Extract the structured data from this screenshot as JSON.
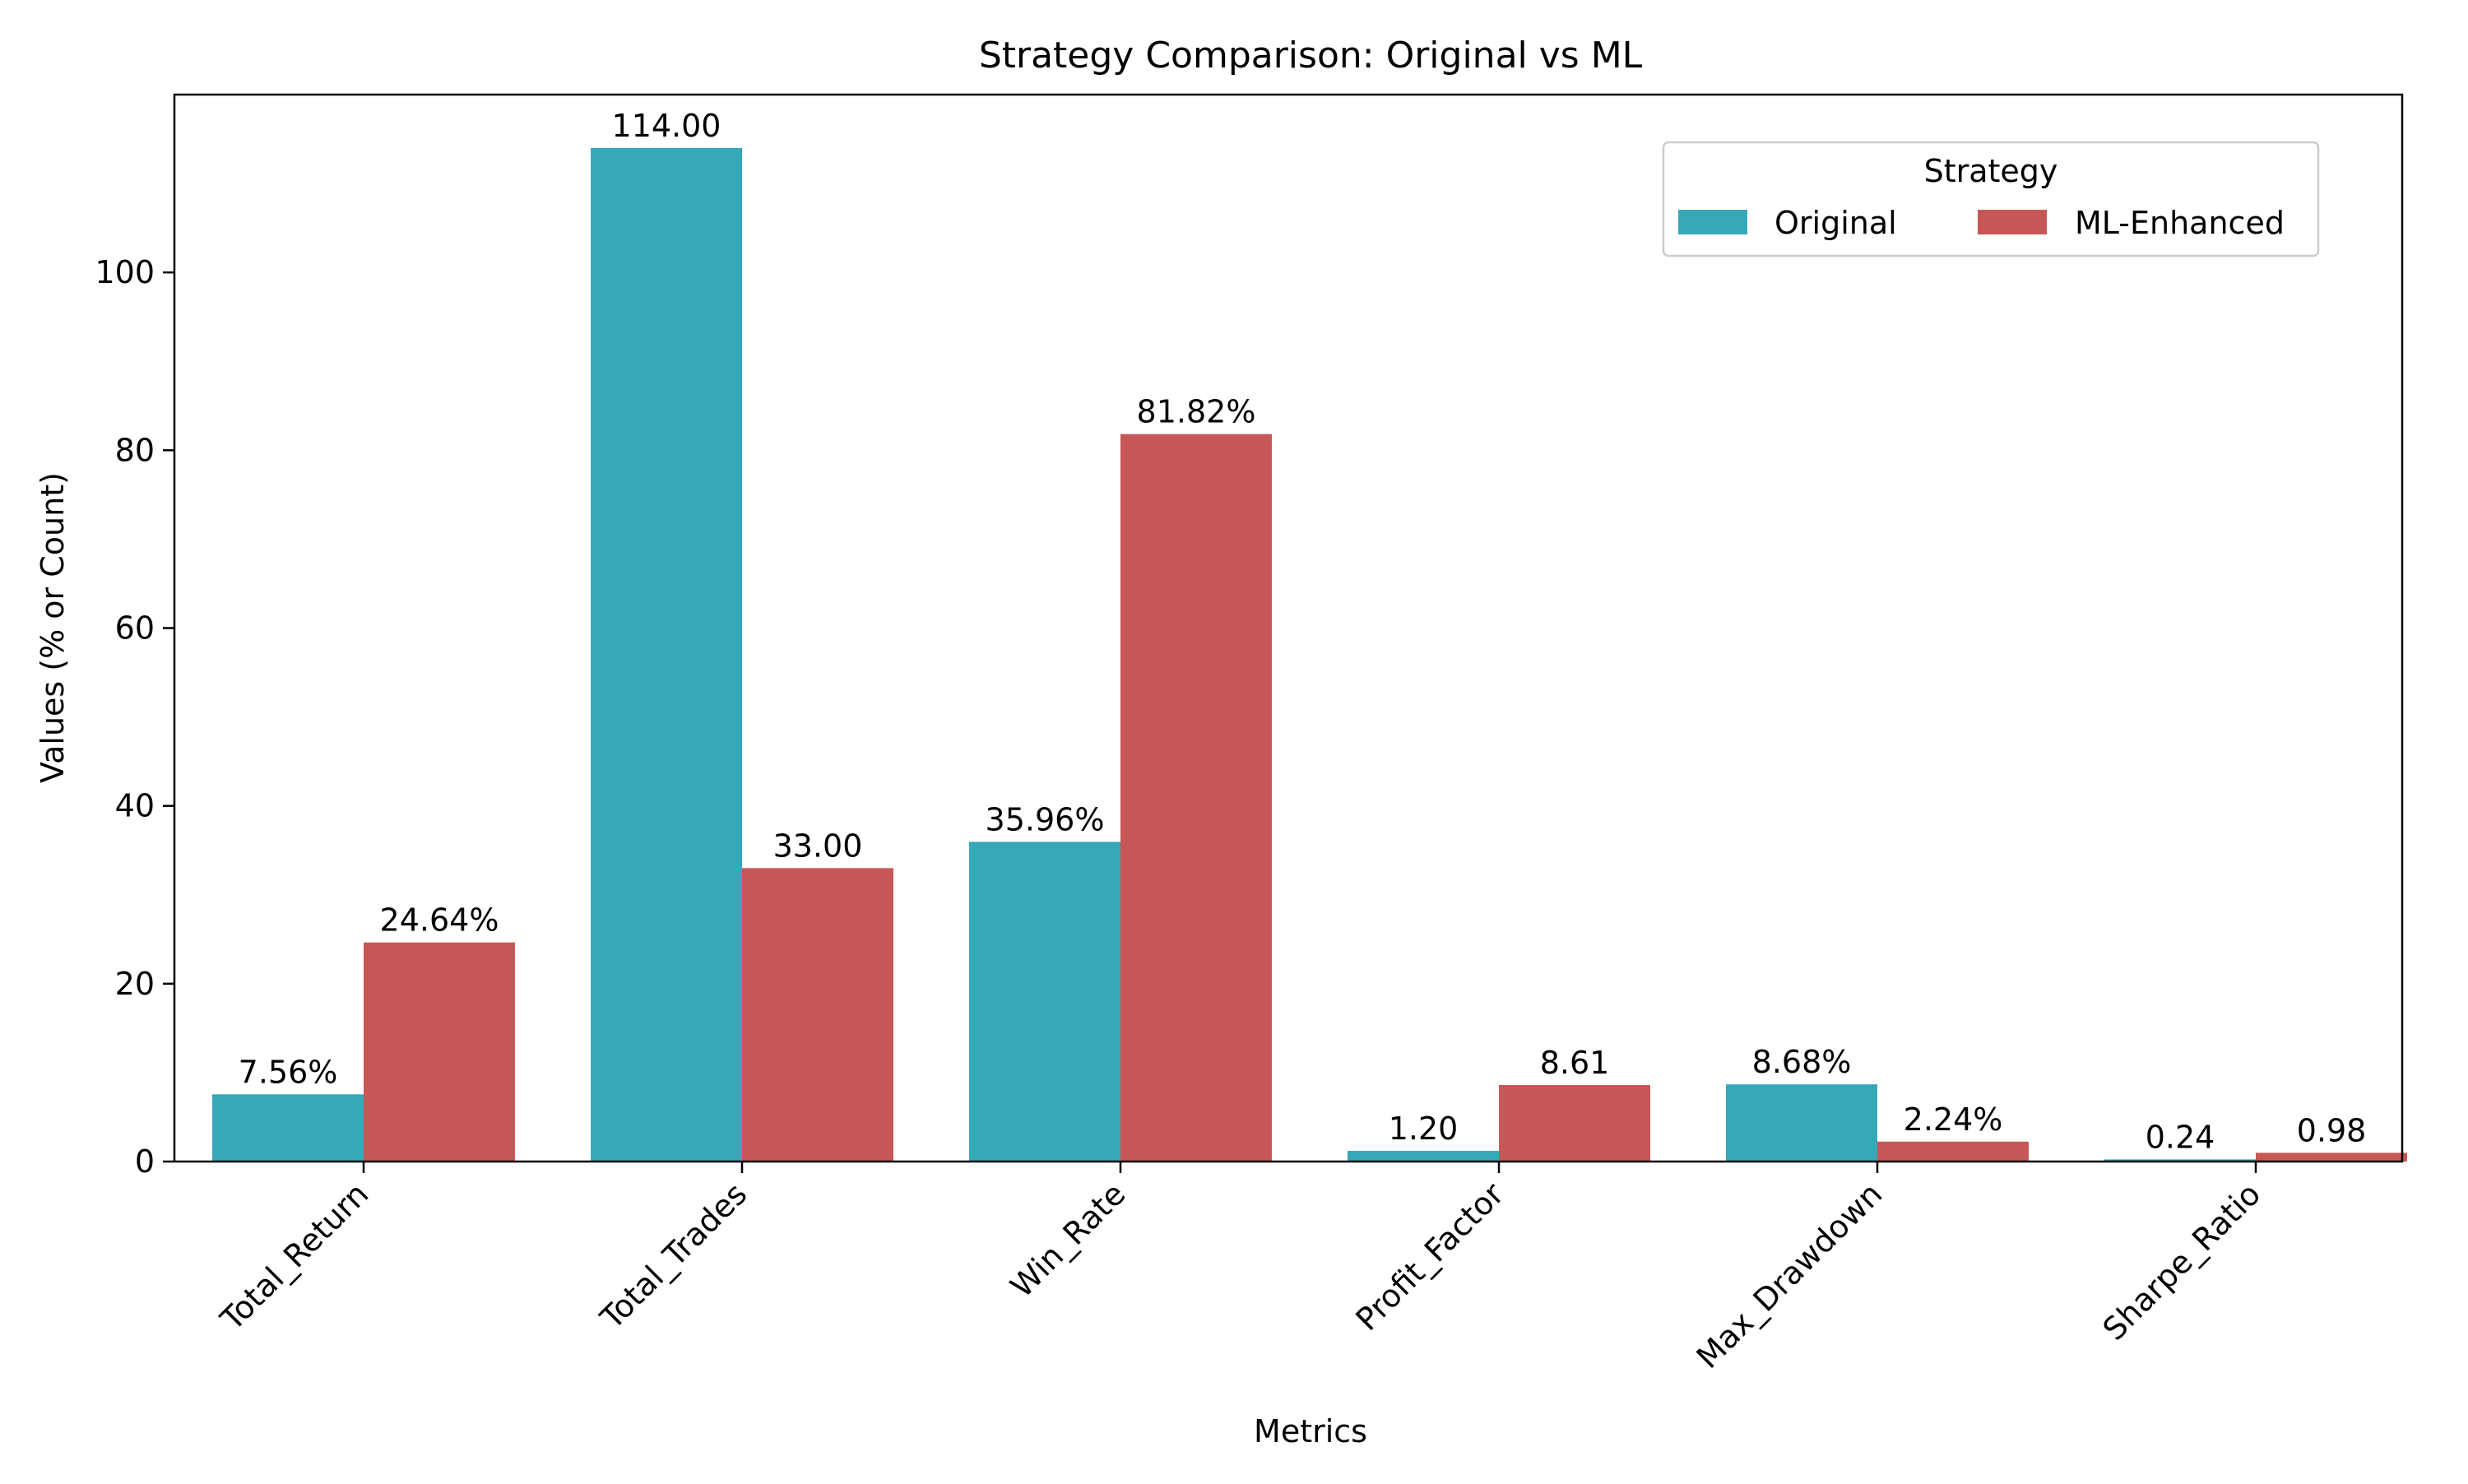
{
  "chart_data": {
    "type": "bar",
    "title": "Strategy Comparison: Original vs ML",
    "xlabel": "Metrics",
    "ylabel": "Values (% or Count)",
    "categories": [
      "Total_Return",
      "Total_Trades",
      "Win_Rate",
      "Profit_Factor",
      "Max_Drawdown",
      "Sharpe_Ratio"
    ],
    "series": [
      {
        "name": "Original",
        "color": "#36a8b8",
        "values": [
          7.56,
          114.0,
          35.96,
          1.2,
          8.68,
          0.24
        ],
        "labels": [
          "7.56%",
          "114.00",
          "35.96%",
          "1.20",
          "8.68%",
          "0.24"
        ]
      },
      {
        "name": "ML-Enhanced",
        "color": "#c75757",
        "values": [
          24.64,
          33.0,
          81.82,
          8.61,
          2.24,
          0.98
        ],
        "labels": [
          "24.64%",
          "33.00",
          "81.82%",
          "8.61",
          "2.24%",
          "0.98"
        ]
      }
    ],
    "ylim": [
      0,
      120
    ],
    "yticks": [
      0,
      20,
      40,
      60,
      80,
      100
    ],
    "grid": false,
    "legend": {
      "title": "Strategy",
      "placement": "top-right",
      "entries": [
        "Original",
        "ML-Enhanced"
      ]
    }
  }
}
